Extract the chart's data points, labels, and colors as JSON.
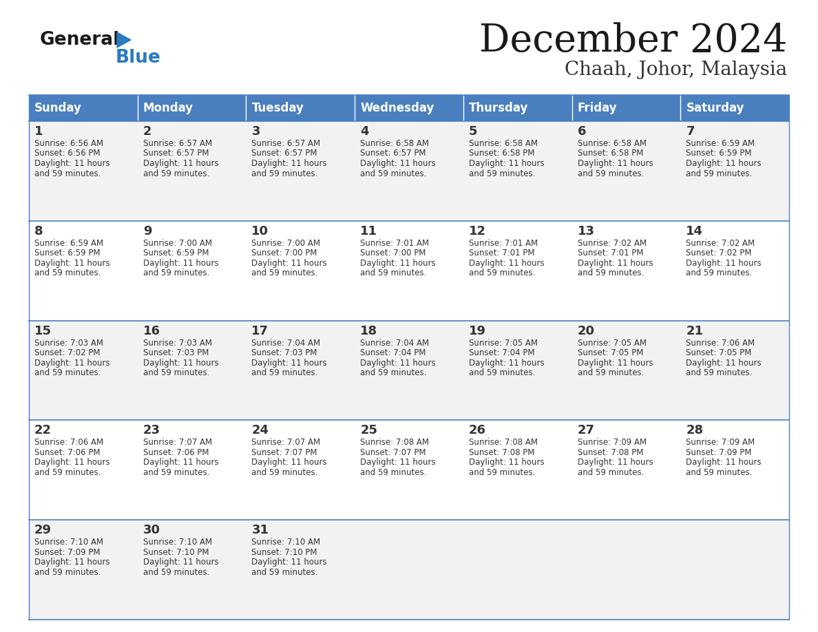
{
  "title": "December 2024",
  "subtitle": "Chaah, Johor, Malaysia",
  "header_bg": "#4a7fbf",
  "header_text_color": "#ffffff",
  "cell_bg_light": "#f2f2f2",
  "cell_bg_white": "#ffffff",
  "border_color": "#4a7fbf",
  "text_color": "#333333",
  "day_headers": [
    "Sunday",
    "Monday",
    "Tuesday",
    "Wednesday",
    "Thursday",
    "Friday",
    "Saturday"
  ],
  "days": [
    {
      "day": 1,
      "col": 0,
      "row": 0,
      "sunrise": "6:56 AM",
      "sunset": "6:56 PM"
    },
    {
      "day": 2,
      "col": 1,
      "row": 0,
      "sunrise": "6:57 AM",
      "sunset": "6:57 PM"
    },
    {
      "day": 3,
      "col": 2,
      "row": 0,
      "sunrise": "6:57 AM",
      "sunset": "6:57 PM"
    },
    {
      "day": 4,
      "col": 3,
      "row": 0,
      "sunrise": "6:58 AM",
      "sunset": "6:57 PM"
    },
    {
      "day": 5,
      "col": 4,
      "row": 0,
      "sunrise": "6:58 AM",
      "sunset": "6:58 PM"
    },
    {
      "day": 6,
      "col": 5,
      "row": 0,
      "sunrise": "6:58 AM",
      "sunset": "6:58 PM"
    },
    {
      "day": 7,
      "col": 6,
      "row": 0,
      "sunrise": "6:59 AM",
      "sunset": "6:59 PM"
    },
    {
      "day": 8,
      "col": 0,
      "row": 1,
      "sunrise": "6:59 AM",
      "sunset": "6:59 PM"
    },
    {
      "day": 9,
      "col": 1,
      "row": 1,
      "sunrise": "7:00 AM",
      "sunset": "6:59 PM"
    },
    {
      "day": 10,
      "col": 2,
      "row": 1,
      "sunrise": "7:00 AM",
      "sunset": "7:00 PM"
    },
    {
      "day": 11,
      "col": 3,
      "row": 1,
      "sunrise": "7:01 AM",
      "sunset": "7:00 PM"
    },
    {
      "day": 12,
      "col": 4,
      "row": 1,
      "sunrise": "7:01 AM",
      "sunset": "7:01 PM"
    },
    {
      "day": 13,
      "col": 5,
      "row": 1,
      "sunrise": "7:02 AM",
      "sunset": "7:01 PM"
    },
    {
      "day": 14,
      "col": 6,
      "row": 1,
      "sunrise": "7:02 AM",
      "sunset": "7:02 PM"
    },
    {
      "day": 15,
      "col": 0,
      "row": 2,
      "sunrise": "7:03 AM",
      "sunset": "7:02 PM"
    },
    {
      "day": 16,
      "col": 1,
      "row": 2,
      "sunrise": "7:03 AM",
      "sunset": "7:03 PM"
    },
    {
      "day": 17,
      "col": 2,
      "row": 2,
      "sunrise": "7:04 AM",
      "sunset": "7:03 PM"
    },
    {
      "day": 18,
      "col": 3,
      "row": 2,
      "sunrise": "7:04 AM",
      "sunset": "7:04 PM"
    },
    {
      "day": 19,
      "col": 4,
      "row": 2,
      "sunrise": "7:05 AM",
      "sunset": "7:04 PM"
    },
    {
      "day": 20,
      "col": 5,
      "row": 2,
      "sunrise": "7:05 AM",
      "sunset": "7:05 PM"
    },
    {
      "day": 21,
      "col": 6,
      "row": 2,
      "sunrise": "7:06 AM",
      "sunset": "7:05 PM"
    },
    {
      "day": 22,
      "col": 0,
      "row": 3,
      "sunrise": "7:06 AM",
      "sunset": "7:06 PM"
    },
    {
      "day": 23,
      "col": 1,
      "row": 3,
      "sunrise": "7:07 AM",
      "sunset": "7:06 PM"
    },
    {
      "day": 24,
      "col": 2,
      "row": 3,
      "sunrise": "7:07 AM",
      "sunset": "7:07 PM"
    },
    {
      "day": 25,
      "col": 3,
      "row": 3,
      "sunrise": "7:08 AM",
      "sunset": "7:07 PM"
    },
    {
      "day": 26,
      "col": 4,
      "row": 3,
      "sunrise": "7:08 AM",
      "sunset": "7:08 PM"
    },
    {
      "day": 27,
      "col": 5,
      "row": 3,
      "sunrise": "7:09 AM",
      "sunset": "7:08 PM"
    },
    {
      "day": 28,
      "col": 6,
      "row": 3,
      "sunrise": "7:09 AM",
      "sunset": "7:09 PM"
    },
    {
      "day": 29,
      "col": 0,
      "row": 4,
      "sunrise": "7:10 AM",
      "sunset": "7:09 PM"
    },
    {
      "day": 30,
      "col": 1,
      "row": 4,
      "sunrise": "7:10 AM",
      "sunset": "7:10 PM"
    },
    {
      "day": 31,
      "col": 2,
      "row": 4,
      "sunrise": "7:10 AM",
      "sunset": "7:10 PM"
    }
  ]
}
